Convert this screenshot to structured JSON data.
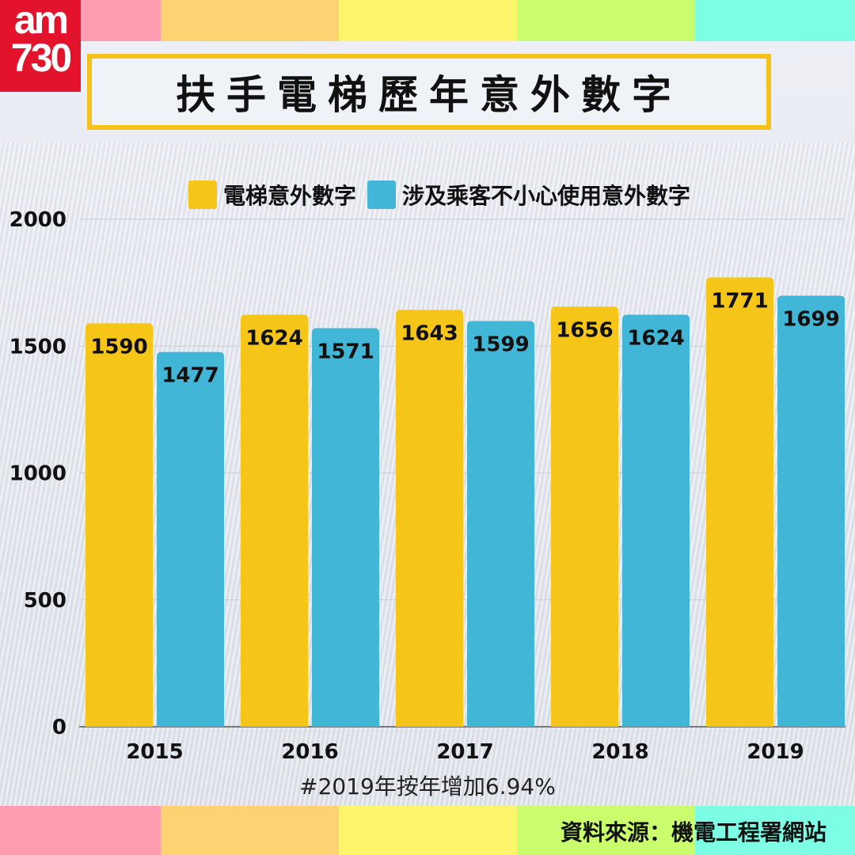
{
  "logo": {
    "line1": "am",
    "line2": "730"
  },
  "title": "扶手電梯歷年意外數字",
  "colors": {
    "series1": "#f5c518",
    "series2": "#42b6d6",
    "title_border": "#f4c21a",
    "logo_bg": "#e3132b",
    "bands": [
      "#fd9bb0",
      "#fdd273",
      "#fdf66d",
      "#c9fd6d",
      "#7dfde4"
    ]
  },
  "note": "#2019年按年增加6.94%",
  "source": "資料來源：機電工程署網站",
  "chart_data": {
    "type": "bar",
    "title": "扶手電梯歷年意外數字",
    "categories": [
      "2015",
      "2016",
      "2017",
      "2018",
      "2019"
    ],
    "series": [
      {
        "name": "電梯意外數字",
        "values": [
          1590,
          1624,
          1643,
          1656,
          1771
        ]
      },
      {
        "name": "涉及乘客不小心使用意外數字",
        "values": [
          1477,
          1571,
          1599,
          1624,
          1699
        ]
      }
    ],
    "yticks": [
      "0",
      "500",
      "1000",
      "1500",
      "2000"
    ],
    "ylim": [
      0,
      2000
    ],
    "grid": true,
    "legend": "top",
    "data_labels": true
  }
}
